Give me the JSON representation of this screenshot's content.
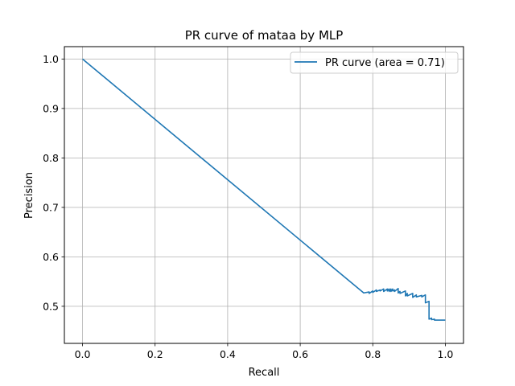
{
  "chart_data": {
    "type": "line",
    "title": "PR curve of mataa by MLP",
    "xlabel": "Recall",
    "ylabel": "Precision",
    "xlim": [
      -0.05,
      1.05
    ],
    "ylim": [
      0.425,
      1.025
    ],
    "xticks": [
      0.0,
      0.2,
      0.4,
      0.6,
      0.8,
      1.0
    ],
    "xtick_labels": [
      "0.0",
      "0.2",
      "0.4",
      "0.6",
      "0.8",
      "1.0"
    ],
    "yticks": [
      0.5,
      0.6,
      0.7,
      0.8,
      0.9,
      1.0
    ],
    "ytick_labels": [
      "0.5",
      "0.6",
      "0.7",
      "0.8",
      "0.9",
      "1.0"
    ],
    "grid": true,
    "legend_position": "top-right",
    "series": [
      {
        "name": "PR curve (area = 0.71)",
        "color": "#1f77b4",
        "x": [
          0.0,
          0.775,
          0.79,
          0.79,
          0.8,
          0.8,
          0.81,
          0.81,
          0.82,
          0.82,
          0.83,
          0.83,
          0.84,
          0.84,
          0.845,
          0.845,
          0.85,
          0.85,
          0.855,
          0.855,
          0.86,
          0.86,
          0.87,
          0.87,
          0.875,
          0.875,
          0.89,
          0.89,
          0.895,
          0.895,
          0.91,
          0.91,
          0.92,
          0.92,
          0.935,
          0.935,
          0.945,
          0.945,
          0.955,
          0.955,
          0.962,
          0.962,
          0.97,
          0.97,
          1.0
        ],
        "y": [
          1.0,
          0.527,
          0.529,
          0.526,
          0.531,
          0.528,
          0.533,
          0.53,
          0.533,
          0.531,
          0.535,
          0.53,
          0.535,
          0.531,
          0.535,
          0.53,
          0.535,
          0.53,
          0.535,
          0.531,
          0.533,
          0.53,
          0.536,
          0.527,
          0.53,
          0.526,
          0.531,
          0.521,
          0.526,
          0.521,
          0.526,
          0.518,
          0.523,
          0.519,
          0.522,
          0.519,
          0.523,
          0.507,
          0.51,
          0.474,
          0.476,
          0.473,
          0.474,
          0.472,
          0.472
        ]
      }
    ]
  }
}
